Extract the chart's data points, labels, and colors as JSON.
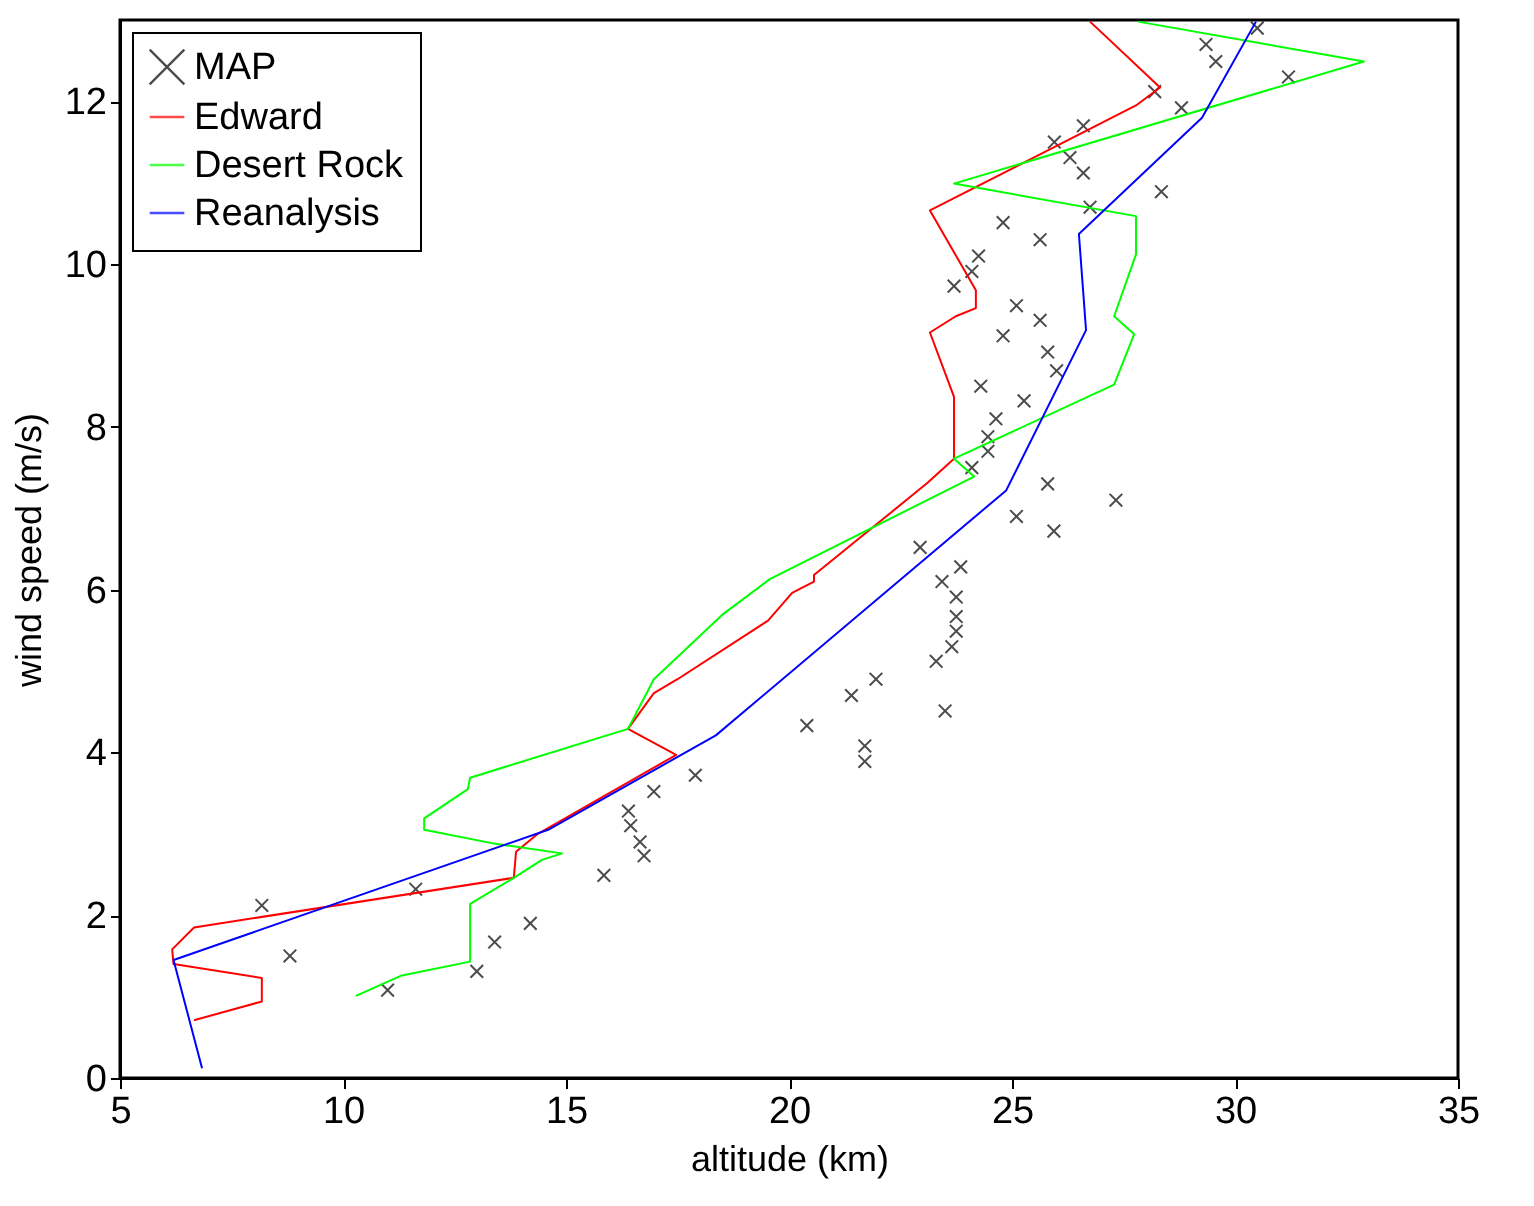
{
  "chart_data": {
    "type": "line",
    "xlabel": "altitude (km)",
    "ylabel": "wind speed (m/s)",
    "xlim": [
      5,
      35
    ],
    "ylim": [
      0,
      13
    ],
    "xticks": [
      5,
      10,
      15,
      20,
      25,
      30,
      35
    ],
    "yticks": [
      0,
      2,
      4,
      6,
      8,
      10,
      12
    ],
    "grid": false,
    "legend": "top left",
    "series": [
      {
        "name": "MAP",
        "type": "scatter",
        "marker": "cross",
        "color": "#000000",
        "x": [
          8.18,
          8.81,
          11.0,
          11.63,
          13.0,
          13.4,
          14.2,
          15.85,
          16.4,
          16.45,
          16.66,
          16.75,
          16.97,
          17.9,
          20.4,
          21.4,
          21.7,
          21.7,
          21.95,
          23.3,
          23.5,
          23.65,
          23.75,
          23.75,
          23.75,
          23.43,
          23.85,
          22.94,
          25.94,
          25.1,
          27.33,
          25.8,
          24.1,
          24.46,
          24.46,
          24.64,
          25.27,
          24.3,
          26.0,
          25.8,
          24.8,
          25.63,
          25.1,
          23.7,
          24.1,
          24.25,
          25.63,
          24.8,
          26.75,
          28.35,
          26.6,
          26.3,
          25.95,
          26.6,
          28.8,
          28.2,
          31.2,
          29.57,
          29.35,
          30.5
        ],
        "values": [
          2.12,
          1.5,
          1.08,
          2.32,
          1.31,
          1.67,
          1.9,
          2.49,
          3.28,
          3.1,
          2.9,
          2.73,
          3.52,
          3.72,
          4.33,
          4.7,
          4.08,
          3.89,
          4.9,
          5.12,
          4.51,
          5.3,
          5.49,
          5.67,
          5.91,
          6.1,
          6.28,
          6.52,
          6.72,
          6.9,
          7.1,
          7.3,
          7.5,
          7.7,
          7.88,
          8.1,
          8.32,
          8.5,
          8.69,
          8.92,
          9.12,
          9.31,
          9.49,
          9.73,
          9.91,
          10.1,
          10.3,
          10.51,
          10.7,
          10.89,
          11.12,
          11.31,
          11.5,
          11.7,
          11.92,
          12.12,
          12.3,
          12.49,
          12.7,
          12.9
        ]
      },
      {
        "name": "Edward",
        "color": "#ff0000",
        "x": [
          6.66,
          8.18,
          8.18,
          6.2,
          6.17,
          6.66,
          13.83,
          13.88,
          14.37,
          17.47,
          16.39,
          16.97,
          17.5,
          19.53,
          20.07,
          20.56,
          20.56,
          23.1,
          23.7,
          23.7,
          23.16,
          23.74,
          24.19,
          24.19,
          23.16,
          27.78,
          28.32,
          26.75
        ],
        "values": [
          0.71,
          0.94,
          1.23,
          1.4,
          1.58,
          1.85,
          2.46,
          2.78,
          3.0,
          3.97,
          4.29,
          4.73,
          4.9,
          5.62,
          5.96,
          6.1,
          6.18,
          7.31,
          7.61,
          8.37,
          9.16,
          9.36,
          9.46,
          9.68,
          10.66,
          11.95,
          12.17,
          12.98
        ]
      },
      {
        "name": "Desert Rock",
        "color": "#00ff00",
        "x": [
          10.29,
          11.32,
          12.85,
          12.85,
          13.83,
          14.46,
          14.91,
          13.39,
          11.82,
          11.82,
          12.8,
          12.85,
          16.39,
          16.97,
          18.5,
          19.57,
          24.15,
          23.7,
          27.29,
          27.74,
          27.29,
          27.78,
          27.78,
          23.7,
          32.89,
          27.83
        ],
        "values": [
          1.01,
          1.26,
          1.43,
          2.14,
          2.46,
          2.68,
          2.76,
          2.88,
          3.05,
          3.19,
          3.55,
          3.69,
          4.29,
          4.9,
          5.69,
          6.13,
          7.39,
          7.61,
          8.52,
          9.14,
          9.36,
          10.12,
          10.59,
          10.99,
          12.49,
          12.98
        ]
      },
      {
        "name": "Reanalysis",
        "color": "#0000ff",
        "x": [
          6.84,
          6.2,
          14.6,
          18.36,
          24.87,
          26.66,
          26.5,
          29.26,
          30.47
        ],
        "values": [
          0.12,
          1.45,
          3.05,
          4.21,
          7.22,
          9.19,
          10.37,
          11.8,
          12.98
        ]
      }
    ]
  }
}
